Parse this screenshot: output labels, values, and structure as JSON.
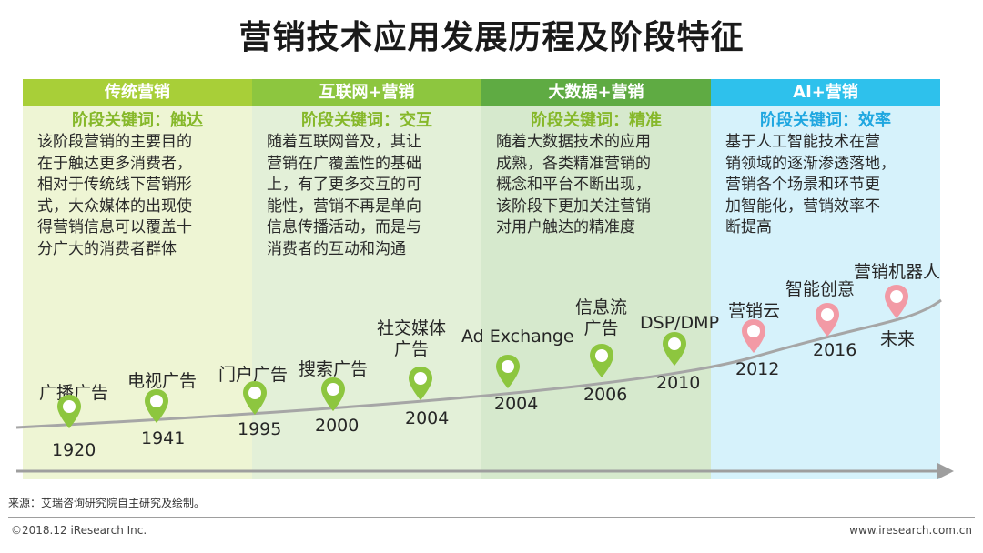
{
  "title": "营销技术应用发展历程及阶段特征",
  "stages": [
    {
      "name": "传统营销",
      "keyword": "阶段关键词：触达",
      "description": [
        "该阶段营销的主要目的",
        "在于触达更多消费者，",
        "相对于传统线下营销形",
        "式，大众媒体的出现使",
        "得营销信息可以覆盖十",
        "分广大的消费者群体"
      ]
    },
    {
      "name": "互联网+营销",
      "keyword": "阶段关键词：交互",
      "description": [
        "随着互联网普及，其让",
        "营销在广覆盖性的基础",
        "上，有了更多交互的可",
        "能性，营销不再是单向",
        "信息传播活动，而是与",
        "消费者的互动和沟通"
      ]
    },
    {
      "name": "大数据+营销",
      "keyword": "阶段关键词：精准",
      "description": [
        "随着大数据技术的应用",
        "成熟，各类精准营销的",
        "概念和平台不断出现，",
        "该阶段下更加关注营销",
        "对用户触达的精准度"
      ]
    },
    {
      "name": "AI+营销",
      "keyword": "阶段关键词：效率",
      "description": [
        "基于人工智能技术在营",
        "销领域的逐渐渗透落地，",
        "营销各个场景和环节更",
        "加智能化，营销效率不",
        "断提高"
      ]
    }
  ],
  "milestones": [
    {
      "label": [
        "广播广告"
      ],
      "year": "1920"
    },
    {
      "label": [
        "电视广告"
      ],
      "year": "1941"
    },
    {
      "label": [
        "门户广告"
      ],
      "year": "1995"
    },
    {
      "label": [
        "搜索广告"
      ],
      "year": "2000"
    },
    {
      "label": [
        "社交媒体",
        "广告"
      ],
      "year": "2004"
    },
    {
      "label": [
        "Ad Exchange"
      ],
      "year": "2004"
    },
    {
      "label": [
        "信息流",
        "广告"
      ],
      "year": "2006"
    },
    {
      "label": [
        "DSP/DMP"
      ],
      "year": "2010"
    },
    {
      "label": [
        "营销云"
      ],
      "year": "2012"
    },
    {
      "label": [
        "智能创意"
      ],
      "year": "2016"
    },
    {
      "label": [
        "营销机器人"
      ],
      "year": "未来"
    }
  ],
  "colors": {
    "pin_green": "#8dc63f",
    "pin_pink": "#f29aa5",
    "curve": "#a6a6a6"
  },
  "footer": {
    "source": "来源：艾瑞咨询研究院自主研究及绘制。",
    "copyright": "©2018.12 iResearch Inc.",
    "website": "www.iresearch.com.cn"
  }
}
